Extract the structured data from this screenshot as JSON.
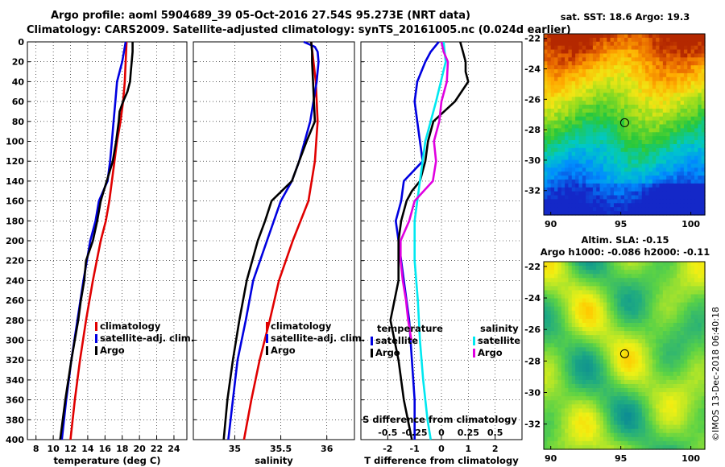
{
  "header": {
    "title_line1": "Argo profile: aoml 5904689_39 05-Oct-2016 27.54S 95.273E (NRT data)",
    "title_line2": "Climatology: CARS2009. Satellite-adjusted climatology: synTS_20161005.nc (0.024d earlier)"
  },
  "watermark": "©IMOS 13-Dec-2018 06:40:18",
  "colors": {
    "red": "#e00000",
    "blue": "#0000e0",
    "black": "#000000",
    "cyan": "#00e8f0",
    "magenta": "#e000e0"
  },
  "chart_data": [
    {
      "type": "line",
      "id": "temperature",
      "xlabel": "temperature (deg C)",
      "xlim": [
        7,
        25.5
      ],
      "ylim": [
        400,
        0
      ],
      "xticks": [
        "8",
        "10",
        "12",
        "14",
        "16",
        "18",
        "20",
        "22",
        "24"
      ],
      "xtick_values": [
        8,
        10,
        12,
        14,
        16,
        18,
        20,
        22,
        24
      ],
      "yticks": [
        "0",
        "20",
        "40",
        "60",
        "80",
        "100",
        "120",
        "140",
        "160",
        "180",
        "200",
        "220",
        "240",
        "260",
        "280",
        "300",
        "320",
        "340",
        "360",
        "380",
        "400"
      ],
      "ytick_values": [
        0,
        20,
        40,
        60,
        80,
        100,
        120,
        140,
        160,
        180,
        200,
        220,
        240,
        260,
        280,
        300,
        320,
        340,
        360,
        380,
        400
      ],
      "legend": [
        "climatology",
        "satellite-adj. clim.",
        "Argo"
      ],
      "series": [
        {
          "name": "climatology",
          "color": "red",
          "depth": [
            0,
            20,
            40,
            60,
            80,
            100,
            120,
            140,
            160,
            180,
            200,
            240,
            280,
            320,
            360,
            400
          ],
          "values": [
            18.5,
            18.4,
            18.3,
            18.1,
            17.8,
            17.4,
            17.1,
            16.8,
            16.5,
            16.1,
            15.5,
            14.6,
            13.8,
            13.1,
            12.5,
            12.0
          ]
        },
        {
          "name": "satellite-adj. clim.",
          "color": "blue",
          "depth": [
            0,
            10,
            20,
            30,
            40,
            60,
            80,
            100,
            120,
            140,
            160,
            180,
            200,
            240,
            280,
            320,
            360,
            400
          ],
          "values": [
            18.4,
            18.2,
            18.0,
            17.7,
            17.4,
            17.2,
            17.0,
            16.8,
            16.6,
            16.3,
            15.3,
            14.9,
            14.3,
            13.5,
            12.8,
            12.1,
            11.5,
            11.0
          ]
        },
        {
          "name": "Argo",
          "color": "black",
          "depth": [
            0,
            10,
            20,
            30,
            40,
            50,
            60,
            70,
            80,
            100,
            120,
            140,
            160,
            180,
            200,
            220,
            240,
            260,
            280,
            320,
            360,
            400
          ],
          "values": [
            19.2,
            19.2,
            19.1,
            19.0,
            18.9,
            18.6,
            18.1,
            17.7,
            17.6,
            17.3,
            16.9,
            16.2,
            15.5,
            15.1,
            14.6,
            13.8,
            13.6,
            13.2,
            12.9,
            12.1,
            11.4,
            10.8
          ]
        }
      ]
    },
    {
      "type": "line",
      "id": "salinity",
      "xlabel": "salinity",
      "xlim": [
        34.55,
        36.3
      ],
      "ylim": [
        400,
        0
      ],
      "xticks": [
        "35",
        "35.5",
        "36"
      ],
      "xtick_values": [
        35,
        35.5,
        36
      ],
      "legend": [
        "climatology",
        "satellite-adj. clim.",
        "Argo"
      ],
      "series": [
        {
          "name": "climatology",
          "color": "red",
          "depth": [
            0,
            40,
            80,
            120,
            160,
            200,
            240,
            280,
            320,
            360,
            400
          ],
          "values": [
            35.83,
            35.88,
            35.9,
            35.87,
            35.8,
            35.63,
            35.48,
            35.38,
            35.27,
            35.18,
            35.1
          ]
        },
        {
          "name": "satellite-adj. clim.",
          "color": "blue",
          "depth": [
            0,
            5,
            10,
            20,
            40,
            80,
            120,
            140,
            160,
            200,
            240,
            280,
            320,
            360,
            400
          ],
          "values": [
            35.75,
            35.87,
            35.9,
            35.91,
            35.89,
            35.82,
            35.7,
            35.62,
            35.5,
            35.35,
            35.2,
            35.12,
            35.03,
            34.98,
            34.93
          ]
        },
        {
          "name": "Argo",
          "color": "black",
          "depth": [
            0,
            10,
            20,
            40,
            60,
            80,
            100,
            120,
            140,
            160,
            180,
            200,
            240,
            280,
            320,
            360,
            400
          ],
          "values": [
            35.83,
            35.84,
            35.84,
            35.85,
            35.86,
            35.87,
            35.78,
            35.7,
            35.62,
            35.4,
            35.33,
            35.25,
            35.13,
            35.05,
            34.98,
            34.92,
            34.88
          ]
        }
      ]
    },
    {
      "type": "line",
      "id": "difference",
      "xlabel": "T difference from climatology",
      "xlabel2": "S difference from climatology",
      "xlim": [
        -3.0,
        3.0
      ],
      "ylim": [
        400,
        0
      ],
      "xticks": [
        "-2",
        "-1",
        "0",
        "1",
        "2"
      ],
      "xtick_values": [
        -2,
        -1,
        0,
        1,
        2
      ],
      "xticks_s": [
        "-0.5",
        "-0.25",
        "0",
        "0.25",
        "0.5"
      ],
      "xtick_values_s": [
        -0.5,
        -0.25,
        0,
        0.25,
        0.5
      ],
      "legend_titles": [
        "temperature",
        "salinity"
      ],
      "legend_t": [
        "satellite",
        "Argo"
      ],
      "legend_s": [
        "satellite",
        "Argo"
      ],
      "series": [
        {
          "name": "T satellite",
          "color": "blue",
          "depth": [
            0,
            10,
            20,
            40,
            60,
            80,
            100,
            120,
            140,
            160,
            180,
            200,
            240,
            280,
            320,
            360,
            400
          ],
          "values": [
            -0.1,
            -0.4,
            -0.6,
            -0.9,
            -1.0,
            -0.9,
            -0.8,
            -0.7,
            -1.4,
            -1.5,
            -1.7,
            -1.6,
            -1.4,
            -1.2,
            -1.1,
            -1.0,
            -1.0
          ]
        },
        {
          "name": "T Argo",
          "color": "black",
          "depth": [
            0,
            10,
            20,
            30,
            40,
            60,
            80,
            100,
            120,
            140,
            150,
            160,
            180,
            200,
            240,
            280,
            320,
            360,
            400
          ],
          "values": [
            0.7,
            0.8,
            0.9,
            0.9,
            1.0,
            0.5,
            -0.3,
            -0.5,
            -0.6,
            -0.8,
            -1.1,
            -1.3,
            -1.5,
            -1.6,
            -1.6,
            -1.9,
            -1.6,
            -1.4,
            -1.1
          ]
        },
        {
          "name": "S satellite",
          "color": "cyan",
          "depth": [
            0,
            20,
            60,
            100,
            140,
            180,
            220,
            260,
            300,
            340,
            380,
            400
          ],
          "values": [
            0.02,
            0.04,
            -0.05,
            -0.15,
            -0.2,
            -0.25,
            -0.25,
            -0.22,
            -0.2,
            -0.17,
            -0.13,
            -0.1
          ]
        },
        {
          "name": "S Argo",
          "color": "magenta",
          "depth": [
            0,
            10,
            20,
            40,
            60,
            80,
            100,
            120,
            140,
            160,
            180,
            200,
            220,
            240,
            260,
            280,
            300
          ],
          "values": [
            0.0,
            0.02,
            0.06,
            0.05,
            0.0,
            -0.02,
            -0.07,
            -0.05,
            -0.08,
            -0.25,
            -0.3,
            -0.38,
            -0.38,
            -0.36,
            -0.33,
            -0.31,
            -0.28
          ]
        }
      ]
    },
    {
      "type": "heatmap",
      "id": "sst_map",
      "title": "sat. SST: 18.6 Argo: 19.3",
      "xticks": [
        "90",
        "95",
        "100"
      ],
      "xtick_values": [
        90,
        95,
        100
      ],
      "yticks": [
        "-22",
        "-24",
        "-26",
        "-28",
        "-30",
        "-32"
      ],
      "ytick_values": [
        -22,
        -24,
        -26,
        -28,
        -30,
        -32
      ],
      "xlim": [
        89.5,
        101
      ],
      "ylim": [
        -33.6,
        -21.7
      ],
      "marker": [
        95.273,
        -27.54
      ]
    },
    {
      "type": "heatmap",
      "id": "sla_map",
      "title": "Altim. SLA: -0.15",
      "subtitle": "Argo h1000: -0.086 h2000: -0.11",
      "xticks": [
        "90",
        "95",
        "100"
      ],
      "xtick_values": [
        90,
        95,
        100
      ],
      "yticks": [
        "-22",
        "-24",
        "-26",
        "-28",
        "-30",
        "-32"
      ],
      "ytick_values": [
        -22,
        -24,
        -26,
        -28,
        -30,
        -32
      ],
      "xlim": [
        89.5,
        101
      ],
      "ylim": [
        -33.6,
        -21.7
      ],
      "marker": [
        95.273,
        -27.54
      ]
    }
  ]
}
